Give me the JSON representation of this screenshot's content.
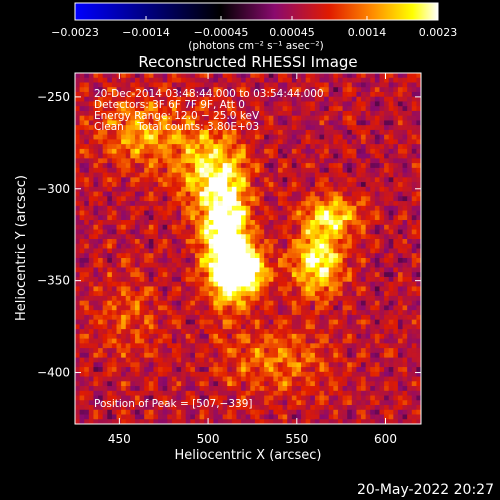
{
  "chart_data": {
    "type": "heatmap",
    "title": "Reconstructed RHESSI Image",
    "xlabel": "Heliocentric X (arcsec)",
    "ylabel": "Heliocentric Y (arcsec)",
    "xlim": [
      425,
      620
    ],
    "ylim": [
      -428,
      -237
    ],
    "x_ticks": [
      450,
      500,
      550,
      600
    ],
    "y_ticks": [
      -250,
      -300,
      -350,
      -400
    ],
    "x_tick_labels": [
      "450",
      "500",
      "550",
      "600"
    ],
    "y_tick_labels": [
      "−250",
      "−300",
      "−350",
      "−400"
    ],
    "colorbar": {
      "min": -0.0023,
      "max": 0.0023,
      "tick_values": [
        -0.0023,
        -0.0014,
        -0.00045,
        0.00045,
        0.0014,
        0.0023
      ],
      "tick_labels": [
        "−0.0023",
        "−0.0014",
        "−0.00045",
        "0.00045",
        "0.0014",
        "0.0023"
      ],
      "units": "(photons cm⁻² s⁻¹ asec⁻²)",
      "colors": [
        "#0000ff",
        "#000000",
        "#8a0a6e",
        "#e01b00",
        "#ff8c00",
        "#ffff00",
        "#ffffff"
      ]
    },
    "annotations": [
      "20-Dec-2014 03:48:44.000 to 03:54:44.000",
      "Detectors: 3F 6F 7F 9F, Att 0",
      "Energy Range: 12.0 − 25.0 keV",
      "Clean    Total counts: 3.80E+03"
    ],
    "peak_label": "Position of Peak = [507,−339]",
    "peak": [
      507,
      -339
    ],
    "sources": [
      {
        "x": 510,
        "y": -328,
        "amp": 0.0022,
        "sx": 9,
        "sy": 24
      },
      {
        "x": 520,
        "y": -345,
        "amp": 0.0018,
        "sx": 10,
        "sy": 9
      },
      {
        "x": 500,
        "y": -290,
        "amp": 0.0011,
        "sx": 14,
        "sy": 18
      },
      {
        "x": 562,
        "y": -340,
        "amp": 0.0016,
        "sx": 10,
        "sy": 13
      },
      {
        "x": 570,
        "y": -315,
        "amp": 0.0012,
        "sx": 12,
        "sy": 8
      },
      {
        "x": 462,
        "y": -270,
        "amp": 0.0009,
        "sx": 18,
        "sy": 14
      },
      {
        "x": 540,
        "y": -395,
        "amp": 0.0007,
        "sx": 22,
        "sy": 14
      },
      {
        "x": 455,
        "y": -370,
        "amp": 0.0005,
        "sx": 14,
        "sy": 18
      }
    ]
  },
  "footer": {
    "date": "20-May-2022 20:27"
  }
}
